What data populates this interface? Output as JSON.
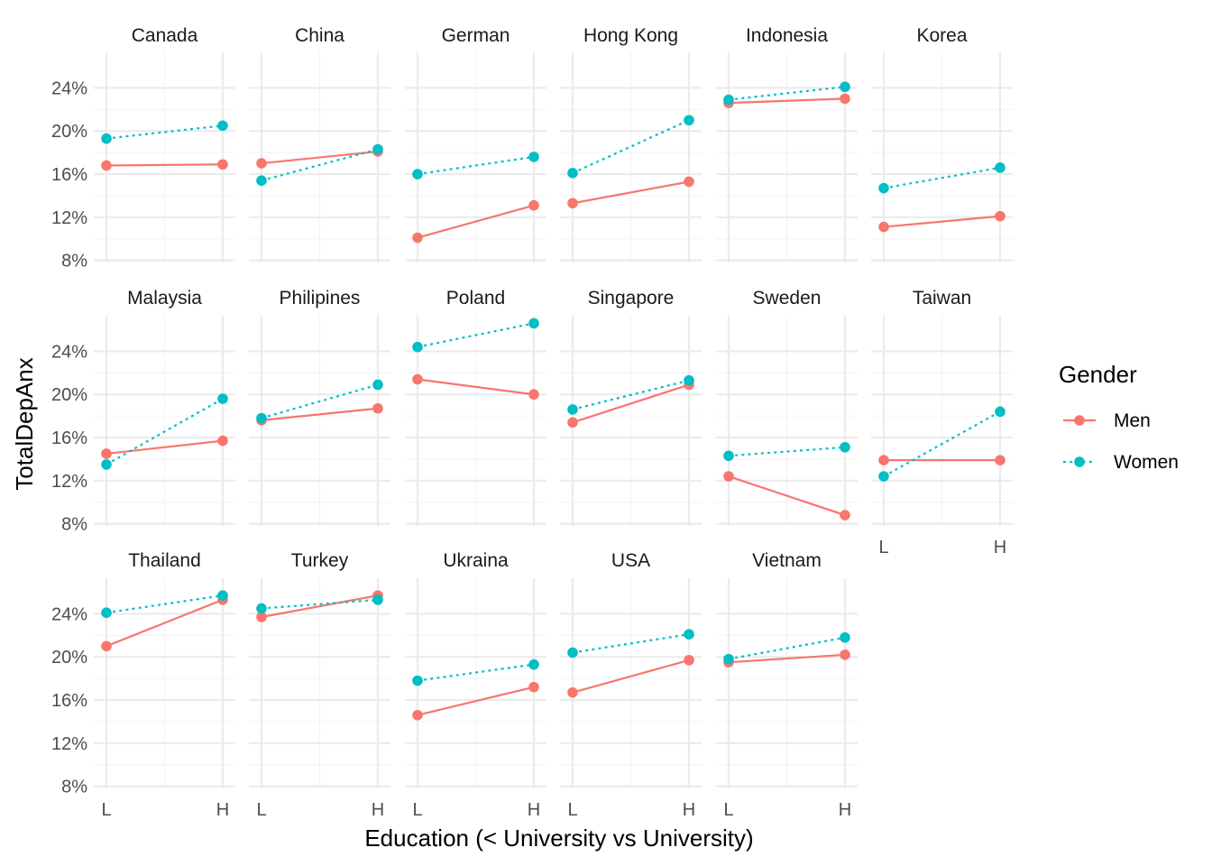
{
  "chart_data": {
    "type": "line",
    "facet_type": "wrap",
    "x_categories": [
      "L",
      "H"
    ],
    "xlabel": "Education (< University vs University)",
    "ylabel": "TotalDepAnx",
    "y_tick_values": [
      8,
      12,
      16,
      20,
      24
    ],
    "y_tick_labels": [
      "8%",
      "12%",
      "16%",
      "20%",
      "24%"
    ],
    "ylim": [
      7.8,
      27.3
    ],
    "grid": true,
    "legend": {
      "title": "Gender",
      "placement": "right",
      "entries": [
        {
          "name": "Men",
          "color": "#F8766D",
          "linetype": "solid"
        },
        {
          "name": "Women",
          "color": "#00BFC4",
          "linetype": "dotted"
        }
      ]
    },
    "series_colors": {
      "Men": "#F8766D",
      "Women": "#00BFC4"
    },
    "panels": [
      {
        "title": "Canada",
        "Men": [
          16.8,
          16.9
        ],
        "Women": [
          19.3,
          20.5
        ]
      },
      {
        "title": "China",
        "Men": [
          17.0,
          18.1
        ],
        "Women": [
          15.4,
          18.3
        ]
      },
      {
        "title": "German",
        "Men": [
          10.1,
          13.1
        ],
        "Women": [
          16.0,
          17.6
        ]
      },
      {
        "title": "Hong Kong",
        "Men": [
          13.3,
          15.3
        ],
        "Women": [
          16.1,
          21.0
        ]
      },
      {
        "title": "Indonesia",
        "Men": [
          22.6,
          23.0
        ],
        "Women": [
          22.9,
          24.1
        ]
      },
      {
        "title": "Korea",
        "Men": [
          11.1,
          12.1
        ],
        "Women": [
          14.7,
          16.6
        ]
      },
      {
        "title": "Malaysia",
        "Men": [
          14.5,
          15.7
        ],
        "Women": [
          13.5,
          19.6
        ]
      },
      {
        "title": "Philipines",
        "Men": [
          17.6,
          18.7
        ],
        "Women": [
          17.8,
          20.9
        ]
      },
      {
        "title": "Poland",
        "Men": [
          21.4,
          20.0
        ],
        "Women": [
          24.4,
          26.6
        ]
      },
      {
        "title": "Singapore",
        "Men": [
          17.4,
          20.9
        ],
        "Women": [
          18.6,
          21.3
        ]
      },
      {
        "title": "Sweden",
        "Men": [
          12.4,
          8.8
        ],
        "Women": [
          14.3,
          15.1
        ]
      },
      {
        "title": "Taiwan",
        "Men": [
          13.9,
          13.9
        ],
        "Women": [
          12.4,
          18.4
        ]
      },
      {
        "title": "Thailand",
        "Men": [
          21.0,
          25.3
        ],
        "Women": [
          24.1,
          25.7
        ]
      },
      {
        "title": "Turkey",
        "Men": [
          23.7,
          25.7
        ],
        "Women": [
          24.5,
          25.3
        ]
      },
      {
        "title": "Ukraina",
        "Men": [
          14.6,
          17.2
        ],
        "Women": [
          17.8,
          19.3
        ]
      },
      {
        "title": "USA",
        "Men": [
          16.7,
          19.7
        ],
        "Women": [
          20.4,
          22.1
        ]
      },
      {
        "title": "Vietnam",
        "Men": [
          19.5,
          20.2
        ],
        "Women": [
          19.8,
          21.8
        ]
      }
    ]
  }
}
